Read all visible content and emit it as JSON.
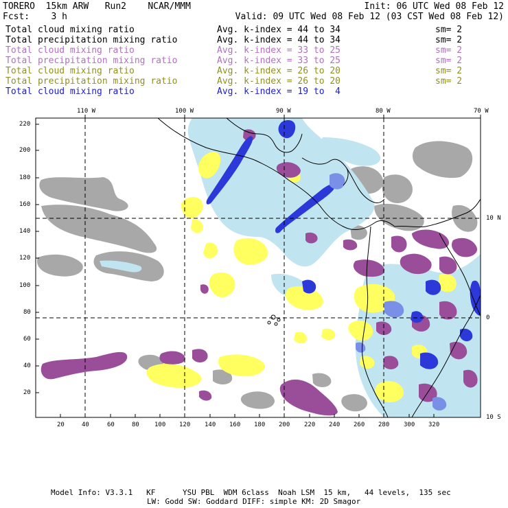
{
  "header": {
    "title": "TORERO  15km ARW   Run2    NCAR/MMM",
    "init": "Init: 06 UTC Wed 08 Feb 12",
    "fcst": "Fcst:    3 h",
    "valid": "Valid: 09 UTC Wed 08 Feb 12 (03 CST Wed 08 Feb 12)"
  },
  "legend": [
    {
      "field": "Total cloud mixing ratio",
      "index": "Avg. k-index = 44 to 34",
      "sm": "sm= 2",
      "color": "#000000"
    },
    {
      "field": "Total precipitation mixing ratio",
      "index": "Avg. k-index = 44 to 34",
      "sm": "sm= 2",
      "color": "#000000"
    },
    {
      "field": "Total cloud mixing ratio",
      "index": "Avg. k-index = 33 to 25",
      "sm": "sm= 2",
      "color": "#b070c0"
    },
    {
      "field": "Total precipitation mixing ratio",
      "index": "Avg. k-index = 33 to 25",
      "sm": "sm= 2",
      "color": "#b070c0"
    },
    {
      "field": "Total cloud mixing ratio",
      "index": "Avg. k-index = 26 to 20",
      "sm": "sm= 2",
      "color": "#909020"
    },
    {
      "field": "Total precipitation mixing ratio",
      "index": "Avg. k-index = 26 to 20",
      "sm": "sm= 2",
      "color": "#909020"
    },
    {
      "field": "Total cloud mixing ratio",
      "index": "Avg. k-index = 19 to  4",
      "sm": "",
      "color": "#1c1cd8"
    }
  ],
  "map": {
    "lon_labels": [
      "110 W",
      "100 W",
      "90 W",
      "80 W",
      "70 W"
    ],
    "lat_labels": [
      "10 N",
      "0",
      "10 S"
    ],
    "y_ticks": [
      "220",
      "200",
      "180",
      "160",
      "140",
      "120",
      "100",
      "80",
      "60",
      "40",
      "20"
    ],
    "x_ticks": [
      "20",
      "40",
      "60",
      "80",
      "100",
      "120",
      "140",
      "160",
      "180",
      "200",
      "220",
      "240",
      "260",
      "280",
      "300",
      "320"
    ],
    "colors": {
      "gray": "#a8a8a8",
      "purple": "#9a4e9a",
      "yellow": "#ffff60",
      "lightblue": "#c0e4f0",
      "blue": "#2c38d8"
    }
  },
  "footer": {
    "line1": "Model Info: V3.3.1   KF      YSU PBL  WDM 6class  Noah LSM  15 km,   44 levels,  135 sec",
    "line2": "LW: Godd SW: Goddard DIFF: simple KM: 2D Smagor"
  }
}
